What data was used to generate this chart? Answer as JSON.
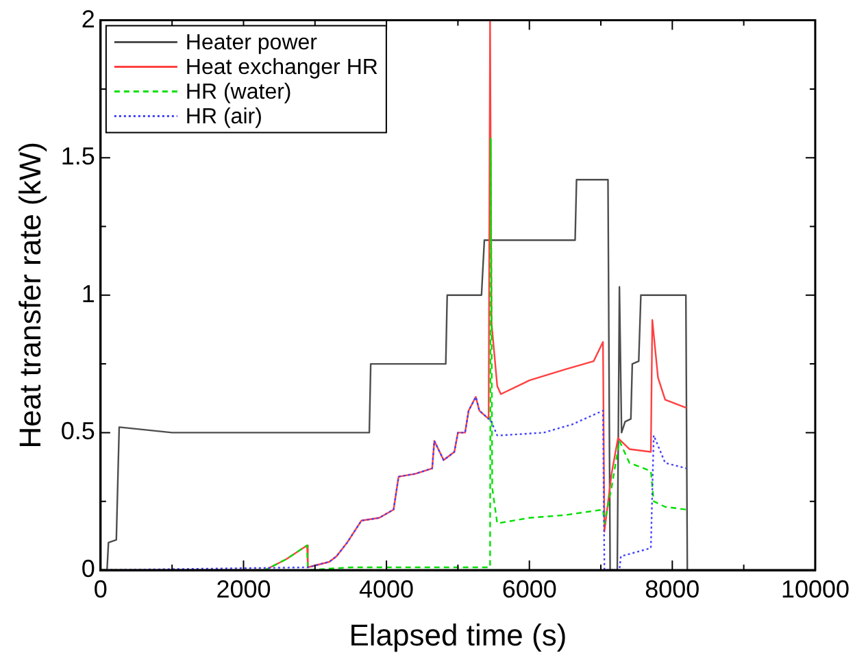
{
  "chart_data": {
    "type": "line",
    "xlabel": "Elapsed time (s)",
    "ylabel": "Heat transfer rate (kW)",
    "xlim": [
      0,
      10000
    ],
    "xticks": [
      0,
      {
        "value": 1000,
        "label": null
      },
      2000,
      {
        "value": 3000,
        "label": null
      },
      4000,
      {
        "value": 5000,
        "label": null
      },
      6000,
      {
        "value": 7000,
        "label": null
      },
      8000,
      {
        "value": 9000,
        "label": null
      },
      10000
    ],
    "ylim": [
      0,
      2
    ],
    "yticks": [
      0,
      {
        "value": 0.25,
        "label": null
      },
      0.5,
      {
        "value": 0.75,
        "label": null
      },
      1,
      {
        "value": 1.25,
        "label": null
      },
      1.5,
      {
        "value": 1.75,
        "label": null
      },
      2
    ],
    "grid": false,
    "legend": "top left",
    "marker": "none",
    "series": [
      {
        "name": "Heater power",
        "color": "#4d4d4d",
        "line_style": "solid",
        "x": [
          0,
          90,
          110,
          220,
          260,
          1000,
          2000,
          3000,
          3760,
          3780,
          4300,
          4830,
          4850,
          5330,
          5370,
          6000,
          6640,
          6660,
          7100,
          7130,
          7230,
          7260,
          7290,
          7340,
          7420,
          7440,
          7530,
          7560,
          8190,
          8210
        ],
        "values": [
          0,
          0,
          0.1,
          0.11,
          0.52,
          0.5,
          0.5,
          0.5,
          0.5,
          0.75,
          0.75,
          0.75,
          1,
          1,
          1.2,
          1.2,
          1.2,
          1.42,
          1.42,
          0,
          0,
          1.03,
          0.5,
          0.54,
          0.55,
          0.75,
          0.76,
          1,
          1,
          0
        ]
      },
      {
        "name": "Heat exchanger HR",
        "color": "#ff4040",
        "line_style": "solid",
        "x": [
          0,
          2300,
          2600,
          2890,
          2900,
          3200,
          3300,
          3450,
          3550,
          3650,
          3900,
          4100,
          4170,
          4400,
          4640,
          4670,
          4800,
          4950,
          5000,
          5100,
          5150,
          5250,
          5300,
          5430,
          5450,
          5470,
          5550,
          5600,
          6000,
          6500,
          6900,
          7030,
          7050,
          7150,
          7240,
          7400,
          7700,
          7720,
          7800,
          7900,
          8200
        ],
        "values": [
          0,
          0,
          0.04,
          0.09,
          0.01,
          0.03,
          0.05,
          0.1,
          0.14,
          0.18,
          0.19,
          0.22,
          0.34,
          0.35,
          0.37,
          0.47,
          0.4,
          0.43,
          0.5,
          0.5,
          0.58,
          0.63,
          0.58,
          0.55,
          2,
          0.9,
          0.67,
          0.64,
          0.69,
          0.73,
          0.76,
          0.83,
          0.14,
          0.35,
          0.48,
          0.44,
          0.43,
          0.91,
          0.7,
          0.62,
          0.59
        ]
      },
      {
        "name": "HR (water)",
        "color": "#00e000",
        "line_style": "dashed",
        "x": [
          0,
          2300,
          2600,
          2890,
          2900,
          3500,
          4500,
          5450,
          5460,
          5480,
          5550,
          6000,
          6500,
          7030,
          7050,
          7150,
          7260,
          7400,
          7700,
          7740,
          7900,
          8200
        ],
        "values": [
          0,
          0,
          0.04,
          0.09,
          0,
          0.01,
          0.01,
          0.01,
          1.57,
          0.3,
          0.17,
          0.19,
          0.2,
          0.22,
          0.17,
          0.3,
          0.47,
          0.39,
          0.36,
          0.25,
          0.23,
          0.22
        ]
      },
      {
        "name": "HR (air)",
        "color": "#4040ff",
        "line_style": "dotted",
        "x": [
          0,
          2900,
          3200,
          3300,
          3450,
          3550,
          3650,
          3900,
          4100,
          4170,
          4400,
          4640,
          4670,
          4800,
          4950,
          5000,
          5100,
          5150,
          5250,
          5300,
          5430,
          5450,
          5550,
          5600,
          6200,
          6600,
          7030,
          7050,
          7260,
          7280,
          7700,
          7740,
          7900,
          8200
        ],
        "values": [
          0,
          0.01,
          0.03,
          0.05,
          0.1,
          0.14,
          0.18,
          0.19,
          0.22,
          0.34,
          0.35,
          0.37,
          0.47,
          0.4,
          0.43,
          0.5,
          0.5,
          0.58,
          0.63,
          0.58,
          0.55,
          0.55,
          0.49,
          0.49,
          0.5,
          0.53,
          0.58,
          0,
          0,
          0.05,
          0.08,
          0.49,
          0.39,
          0.37
        ]
      }
    ]
  }
}
